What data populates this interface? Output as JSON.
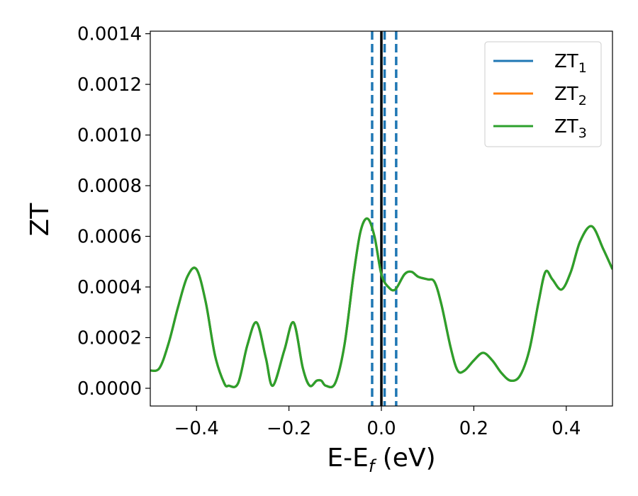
{
  "chart_data": {
    "type": "line",
    "xlabel": {
      "main": "E-E",
      "sub": "f",
      "tail": " (eV)"
    },
    "ylabel": "ZT",
    "xlim": [
      -0.5,
      0.5
    ],
    "ylim": [
      -7e-05,
      0.00141
    ],
    "xticks": [
      {
        "value": -0.4,
        "label": "−0.4"
      },
      {
        "value": -0.2,
        "label": "−0.2"
      },
      {
        "value": 0.0,
        "label": "0.0"
      },
      {
        "value": 0.2,
        "label": "0.2"
      },
      {
        "value": 0.4,
        "label": "0.4"
      }
    ],
    "yticks": [
      {
        "value": 0.0,
        "label": "0.0000"
      },
      {
        "value": 0.0002,
        "label": "0.0002"
      },
      {
        "value": 0.0004,
        "label": "0.0004"
      },
      {
        "value": 0.0006,
        "label": "0.0006"
      },
      {
        "value": 0.0008,
        "label": "0.0008"
      },
      {
        "value": 0.001,
        "label": "0.0010"
      },
      {
        "value": 0.0012,
        "label": "0.0012"
      },
      {
        "value": 0.0014,
        "label": "0.0014"
      }
    ],
    "grid": false,
    "legend": {
      "placement": "top-right"
    },
    "vertical_lines": [
      {
        "x": -0.02,
        "style": "dashed",
        "color": "#1f77b4"
      },
      {
        "x": 0.007,
        "style": "dashed",
        "color": "#1f77b4"
      },
      {
        "x": 0.032,
        "style": "dashed",
        "color": "#1f77b4"
      },
      {
        "x": 0.0,
        "style": "solid",
        "color": "#000000"
      }
    ],
    "x": [
      -0.5,
      -0.48,
      -0.46,
      -0.44,
      -0.42,
      -0.4,
      -0.38,
      -0.36,
      -0.34,
      -0.33,
      -0.31,
      -0.29,
      -0.27,
      -0.25,
      -0.235,
      -0.21,
      -0.19,
      -0.17,
      -0.155,
      -0.14,
      -0.13,
      -0.12,
      -0.1,
      -0.08,
      -0.06,
      -0.045,
      -0.03,
      -0.015,
      0.0,
      0.015,
      0.03,
      0.05,
      0.065,
      0.08,
      0.1,
      0.115,
      0.13,
      0.15,
      0.165,
      0.18,
      0.2,
      0.22,
      0.24,
      0.26,
      0.28,
      0.3,
      0.32,
      0.34,
      0.355,
      0.37,
      0.39,
      0.41,
      0.43,
      0.455,
      0.48,
      0.5
    ],
    "series": [
      {
        "name": "ZT",
        "sub": "1",
        "color": "#1f77b4",
        "values": [
          7e-05,
          8e-05,
          0.00018,
          0.00032,
          0.00044,
          0.00047,
          0.00034,
          0.00013,
          2e-05,
          1e-05,
          2e-05,
          0.00017,
          0.00026,
          0.00012,
          1e-05,
          0.00015,
          0.00026,
          8e-05,
          1e-05,
          3e-05,
          3e-05,
          1e-05,
          2e-05,
          0.00017,
          0.00045,
          0.00062,
          0.00067,
          0.0006,
          0.00045,
          0.0004,
          0.00039,
          0.00045,
          0.00046,
          0.00044,
          0.00043,
          0.00042,
          0.00033,
          0.00016,
          7e-05,
          7e-05,
          0.00011,
          0.00014,
          0.00011,
          6e-05,
          3e-05,
          5e-05,
          0.00015,
          0.00034,
          0.00046,
          0.00043,
          0.00039,
          0.00046,
          0.00058,
          0.00064,
          0.00055,
          0.00047
        ]
      },
      {
        "name": "ZT",
        "sub": "2",
        "color": "#ff7f0e",
        "values": [
          7e-05,
          8e-05,
          0.00018,
          0.00032,
          0.00044,
          0.00047,
          0.00034,
          0.00013,
          2e-05,
          1e-05,
          2e-05,
          0.00017,
          0.00026,
          0.00012,
          1e-05,
          0.00015,
          0.00026,
          8e-05,
          1e-05,
          3e-05,
          3e-05,
          1e-05,
          2e-05,
          0.00017,
          0.00045,
          0.00062,
          0.00067,
          0.0006,
          0.00045,
          0.0004,
          0.00039,
          0.00045,
          0.00046,
          0.00044,
          0.00043,
          0.00042,
          0.00033,
          0.00016,
          7e-05,
          7e-05,
          0.00011,
          0.00014,
          0.00011,
          6e-05,
          3e-05,
          5e-05,
          0.00015,
          0.00034,
          0.00046,
          0.00043,
          0.00039,
          0.00046,
          0.00058,
          0.00064,
          0.00055,
          0.00047
        ]
      },
      {
        "name": "ZT",
        "sub": "3",
        "color": "#2ca02c",
        "values": [
          7e-05,
          8e-05,
          0.00018,
          0.00032,
          0.00044,
          0.00047,
          0.00034,
          0.00013,
          2e-05,
          1e-05,
          2e-05,
          0.00017,
          0.00026,
          0.00012,
          1e-05,
          0.00015,
          0.00026,
          8e-05,
          1e-05,
          3e-05,
          3e-05,
          1e-05,
          2e-05,
          0.00017,
          0.00045,
          0.00062,
          0.00067,
          0.0006,
          0.00045,
          0.0004,
          0.00039,
          0.00045,
          0.00046,
          0.00044,
          0.00043,
          0.00042,
          0.00033,
          0.00016,
          7e-05,
          7e-05,
          0.00011,
          0.00014,
          0.00011,
          6e-05,
          3e-05,
          5e-05,
          0.00015,
          0.00034,
          0.00046,
          0.00043,
          0.00039,
          0.00046,
          0.00058,
          0.00064,
          0.00055,
          0.00047
        ]
      }
    ]
  }
}
